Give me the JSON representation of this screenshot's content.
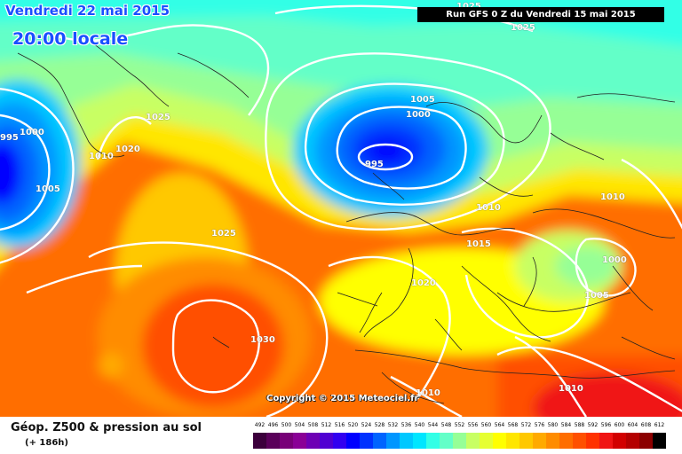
{
  "header": {
    "date": "Vendredi 22 mai 2015",
    "local_time": "20:00 locale",
    "run_info": "Run GFS 0 Z du Vendredi 15 mai 2015"
  },
  "footer": {
    "parameter": "Géop. Z500 & pression au sol",
    "lead_time": "(+ 186h)",
    "copyright": "Copyright © 2015 Meteociel.fr"
  },
  "isobar_labels": [
    "1025",
    "1025",
    "995",
    "1000",
    "1010",
    "1020",
    "1005",
    "1025",
    "1005",
    "1000",
    "995",
    "1010",
    "1010",
    "1015",
    "1025",
    "1000",
    "1005",
    "1030",
    "1020",
    "1010",
    "1010"
  ],
  "legend": {
    "ticks": [
      "492",
      "496",
      "500",
      "504",
      "508",
      "512",
      "516",
      "520",
      "524",
      "528",
      "532",
      "536",
      "540",
      "544",
      "548",
      "552",
      "556",
      "560",
      "564",
      "568",
      "572",
      "576",
      "580",
      "584",
      "588",
      "592",
      "596",
      "600",
      "604",
      "608",
      "612"
    ],
    "colors": [
      "#3c003c",
      "#5a005a",
      "#780078",
      "#8a0096",
      "#6e00b4",
      "#5000d2",
      "#3200f0",
      "#0000ff",
      "#0032ff",
      "#0064ff",
      "#0096ff",
      "#00c8ff",
      "#00e6ff",
      "#32ffe6",
      "#64ffc8",
      "#96ff96",
      "#c8ff64",
      "#e6ff32",
      "#ffff00",
      "#ffe600",
      "#ffc800",
      "#ffaa00",
      "#ff8c00",
      "#ff6e00",
      "#ff5000",
      "#ff3200",
      "#f01414",
      "#d20000",
      "#b40000",
      "#8c0000",
      "#000000"
    ]
  }
}
